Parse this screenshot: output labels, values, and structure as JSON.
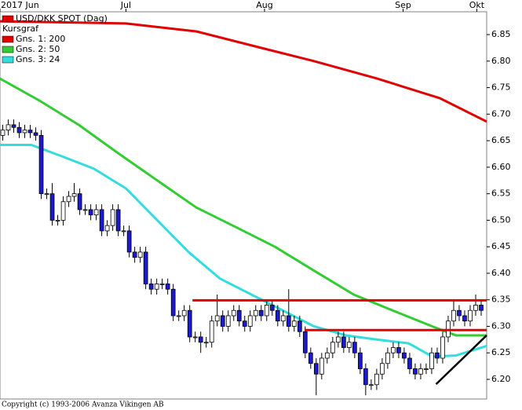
{
  "chart_data": {
    "type": "candlestick",
    "title": "USD/DKK SPOT (Dag)",
    "legend_title": "Kursgraf",
    "footer": "Copyright (c) 1993-2006 Avanza Vikingen AB",
    "up_color": "#ffffff",
    "down_color": "#1a1ad0",
    "outline_color": "#000000",
    "xlim": [
      -0.5,
      88
    ],
    "xticks": [
      {
        "value": -0.5,
        "label": "2017 Jun"
      },
      {
        "value": 22.4,
        "label": "Jul"
      },
      {
        "value": 47.6,
        "label": "Aug"
      },
      {
        "value": 72.8,
        "label": "Sep"
      },
      {
        "value": 86.2,
        "label": "Okt"
      }
    ],
    "ylim": [
      6.163,
      6.893
    ],
    "yticks": [
      {
        "value": 6.2,
        "label": "6.20"
      },
      {
        "value": 6.25,
        "label": "6.25"
      },
      {
        "value": 6.3,
        "label": "6.30"
      },
      {
        "value": 6.35,
        "label": "6.35"
      },
      {
        "value": 6.4,
        "label": "6.40"
      },
      {
        "value": 6.45,
        "label": "6.45"
      },
      {
        "value": 6.5,
        "label": "6.50"
      },
      {
        "value": 6.55,
        "label": "6.55"
      },
      {
        "value": 6.6,
        "label": "6.60"
      },
      {
        "value": 6.65,
        "label": "6.65"
      },
      {
        "value": 6.7,
        "label": "6.70"
      },
      {
        "value": 6.75,
        "label": "6.75"
      },
      {
        "value": 6.8,
        "label": "6.80"
      },
      {
        "value": 6.85,
        "label": "6.85"
      }
    ],
    "open": [
      6.66,
      6.67,
      6.68,
      6.675,
      6.665,
      6.67,
      6.665,
      6.66,
      6.55,
      6.55,
      6.5,
      6.5,
      6.535,
      6.545,
      6.55,
      6.52,
      6.52,
      6.51,
      6.52,
      6.48,
      6.49,
      6.52,
      6.48,
      6.48,
      6.44,
      6.43,
      6.44,
      6.38,
      6.37,
      6.38,
      6.38,
      6.37,
      6.32,
      6.32,
      6.33,
      6.28,
      6.28,
      6.27,
      6.27,
      6.31,
      6.32,
      6.3,
      6.32,
      6.33,
      6.31,
      6.3,
      6.32,
      6.33,
      6.32,
      6.34,
      6.33,
      6.31,
      6.32,
      6.3,
      6.31,
      6.29,
      6.25,
      6.23,
      6.21,
      6.24,
      6.25,
      6.27,
      6.28,
      6.26,
      6.27,
      6.25,
      6.22,
      6.19,
      6.19,
      6.21,
      6.23,
      6.25,
      6.26,
      6.25,
      6.24,
      6.22,
      6.21,
      6.22,
      6.22,
      6.25,
      6.24,
      6.28,
      6.31,
      6.33,
      6.32,
      6.31,
      6.33,
      6.34
    ],
    "high": [
      6.68,
      6.69,
      6.69,
      6.685,
      6.68,
      6.68,
      6.675,
      6.67,
      6.56,
      6.57,
      6.51,
      6.545,
      6.555,
      6.57,
      6.56,
      6.53,
      6.53,
      6.53,
      6.53,
      6.5,
      6.53,
      6.53,
      6.49,
      6.49,
      6.45,
      6.45,
      6.45,
      6.39,
      6.39,
      6.39,
      6.39,
      6.38,
      6.33,
      6.34,
      6.34,
      6.29,
      6.29,
      6.28,
      6.32,
      6.36,
      6.33,
      6.33,
      6.34,
      6.34,
      6.32,
      6.33,
      6.34,
      6.34,
      6.35,
      6.35,
      6.34,
      6.33,
      6.37,
      6.32,
      6.32,
      6.3,
      6.26,
      6.24,
      6.25,
      6.26,
      6.28,
      6.29,
      6.29,
      6.28,
      6.28,
      6.26,
      6.23,
      6.2,
      6.22,
      6.24,
      6.26,
      6.27,
      6.27,
      6.26,
      6.25,
      6.23,
      6.23,
      6.23,
      6.26,
      6.26,
      6.29,
      6.32,
      6.35,
      6.34,
      6.33,
      6.34,
      6.36,
      6.35
    ],
    "low": [
      6.65,
      6.66,
      6.665,
      6.655,
      6.655,
      6.655,
      6.65,
      6.54,
      6.54,
      6.49,
      6.49,
      6.49,
      6.525,
      6.535,
      6.51,
      6.51,
      6.5,
      6.5,
      6.47,
      6.47,
      6.48,
      6.47,
      6.47,
      6.43,
      6.42,
      6.42,
      6.37,
      6.36,
      6.36,
      6.37,
      6.36,
      6.31,
      6.31,
      6.31,
      6.27,
      6.27,
      6.25,
      6.26,
      6.26,
      6.3,
      6.29,
      6.29,
      6.31,
      6.3,
      6.29,
      6.29,
      6.31,
      6.31,
      6.31,
      6.32,
      6.3,
      6.3,
      6.29,
      6.29,
      6.28,
      6.24,
      6.22,
      6.17,
      6.2,
      6.23,
      6.24,
      6.26,
      6.25,
      6.25,
      6.24,
      6.21,
      6.17,
      6.18,
      6.18,
      6.2,
      6.22,
      6.24,
      6.24,
      6.23,
      6.21,
      6.2,
      6.2,
      6.21,
      6.21,
      6.23,
      6.23,
      6.27,
      6.3,
      6.31,
      6.3,
      6.3,
      6.32,
      6.32
    ],
    "close": [
      6.67,
      6.68,
      6.675,
      6.665,
      6.67,
      6.665,
      6.66,
      6.55,
      6.55,
      6.5,
      6.5,
      6.535,
      6.545,
      6.55,
      6.52,
      6.52,
      6.51,
      6.52,
      6.48,
      6.49,
      6.52,
      6.48,
      6.48,
      6.44,
      6.43,
      6.44,
      6.38,
      6.37,
      6.38,
      6.38,
      6.37,
      6.32,
      6.32,
      6.33,
      6.28,
      6.28,
      6.27,
      6.27,
      6.31,
      6.32,
      6.3,
      6.32,
      6.33,
      6.31,
      6.3,
      6.32,
      6.33,
      6.32,
      6.34,
      6.33,
      6.31,
      6.32,
      6.3,
      6.31,
      6.29,
      6.25,
      6.23,
      6.21,
      6.24,
      6.25,
      6.27,
      6.28,
      6.26,
      6.27,
      6.25,
      6.22,
      6.19,
      6.19,
      6.21,
      6.23,
      6.25,
      6.26,
      6.25,
      6.24,
      6.22,
      6.21,
      6.22,
      6.22,
      6.25,
      6.24,
      6.28,
      6.31,
      6.33,
      6.32,
      6.31,
      6.33,
      6.34,
      6.33
    ],
    "series": [
      {
        "name": "Gns. 1: 200",
        "color": "#e00000",
        "x": [
          -0.5,
          22.4,
          35.2,
          46.6,
          56.6,
          68.1,
          79.5,
          88
        ],
        "values": [
          6.875,
          6.871,
          6.856,
          6.826,
          6.8,
          6.767,
          6.73,
          6.686
        ]
      },
      {
        "name": "Gns. 2: 50",
        "color": "#33cc33",
        "x": [
          -0.5,
          6.6,
          13.8,
          20.9,
          28.1,
          35.2,
          42.4,
          49.5,
          56.6,
          63.8,
          70.9,
          78.1,
          82.4,
          88
        ],
        "values": [
          6.767,
          6.726,
          6.68,
          6.627,
          6.575,
          6.524,
          6.487,
          6.45,
          6.405,
          6.36,
          6.33,
          6.3,
          6.283,
          6.283
        ]
      },
      {
        "name": "Gns. 3: 24",
        "color": "#33dddd",
        "x": [
          -0.5,
          5.2,
          10.9,
          16.6,
          22.4,
          28.1,
          33.8,
          39.5,
          45.2,
          50.9,
          56.6,
          62.4,
          68.1,
          73.8,
          78.1,
          82.4,
          88
        ],
        "values": [
          6.642,
          6.642,
          6.62,
          6.597,
          6.56,
          6.5,
          6.44,
          6.39,
          6.36,
          6.33,
          6.3,
          6.283,
          6.275,
          6.268,
          6.243,
          6.245,
          6.263
        ]
      }
    ],
    "lines": [
      {
        "color": "#e00000",
        "x": [
          34.5,
          88
        ],
        "values": [
          6.349,
          6.349
        ]
      },
      {
        "color": "#e00000",
        "x": [
          54.9,
          88
        ],
        "values": [
          6.293,
          6.293
        ]
      },
      {
        "color": "#000000",
        "x": [
          78.8,
          88
        ],
        "values": [
          6.191,
          6.283
        ]
      }
    ]
  }
}
